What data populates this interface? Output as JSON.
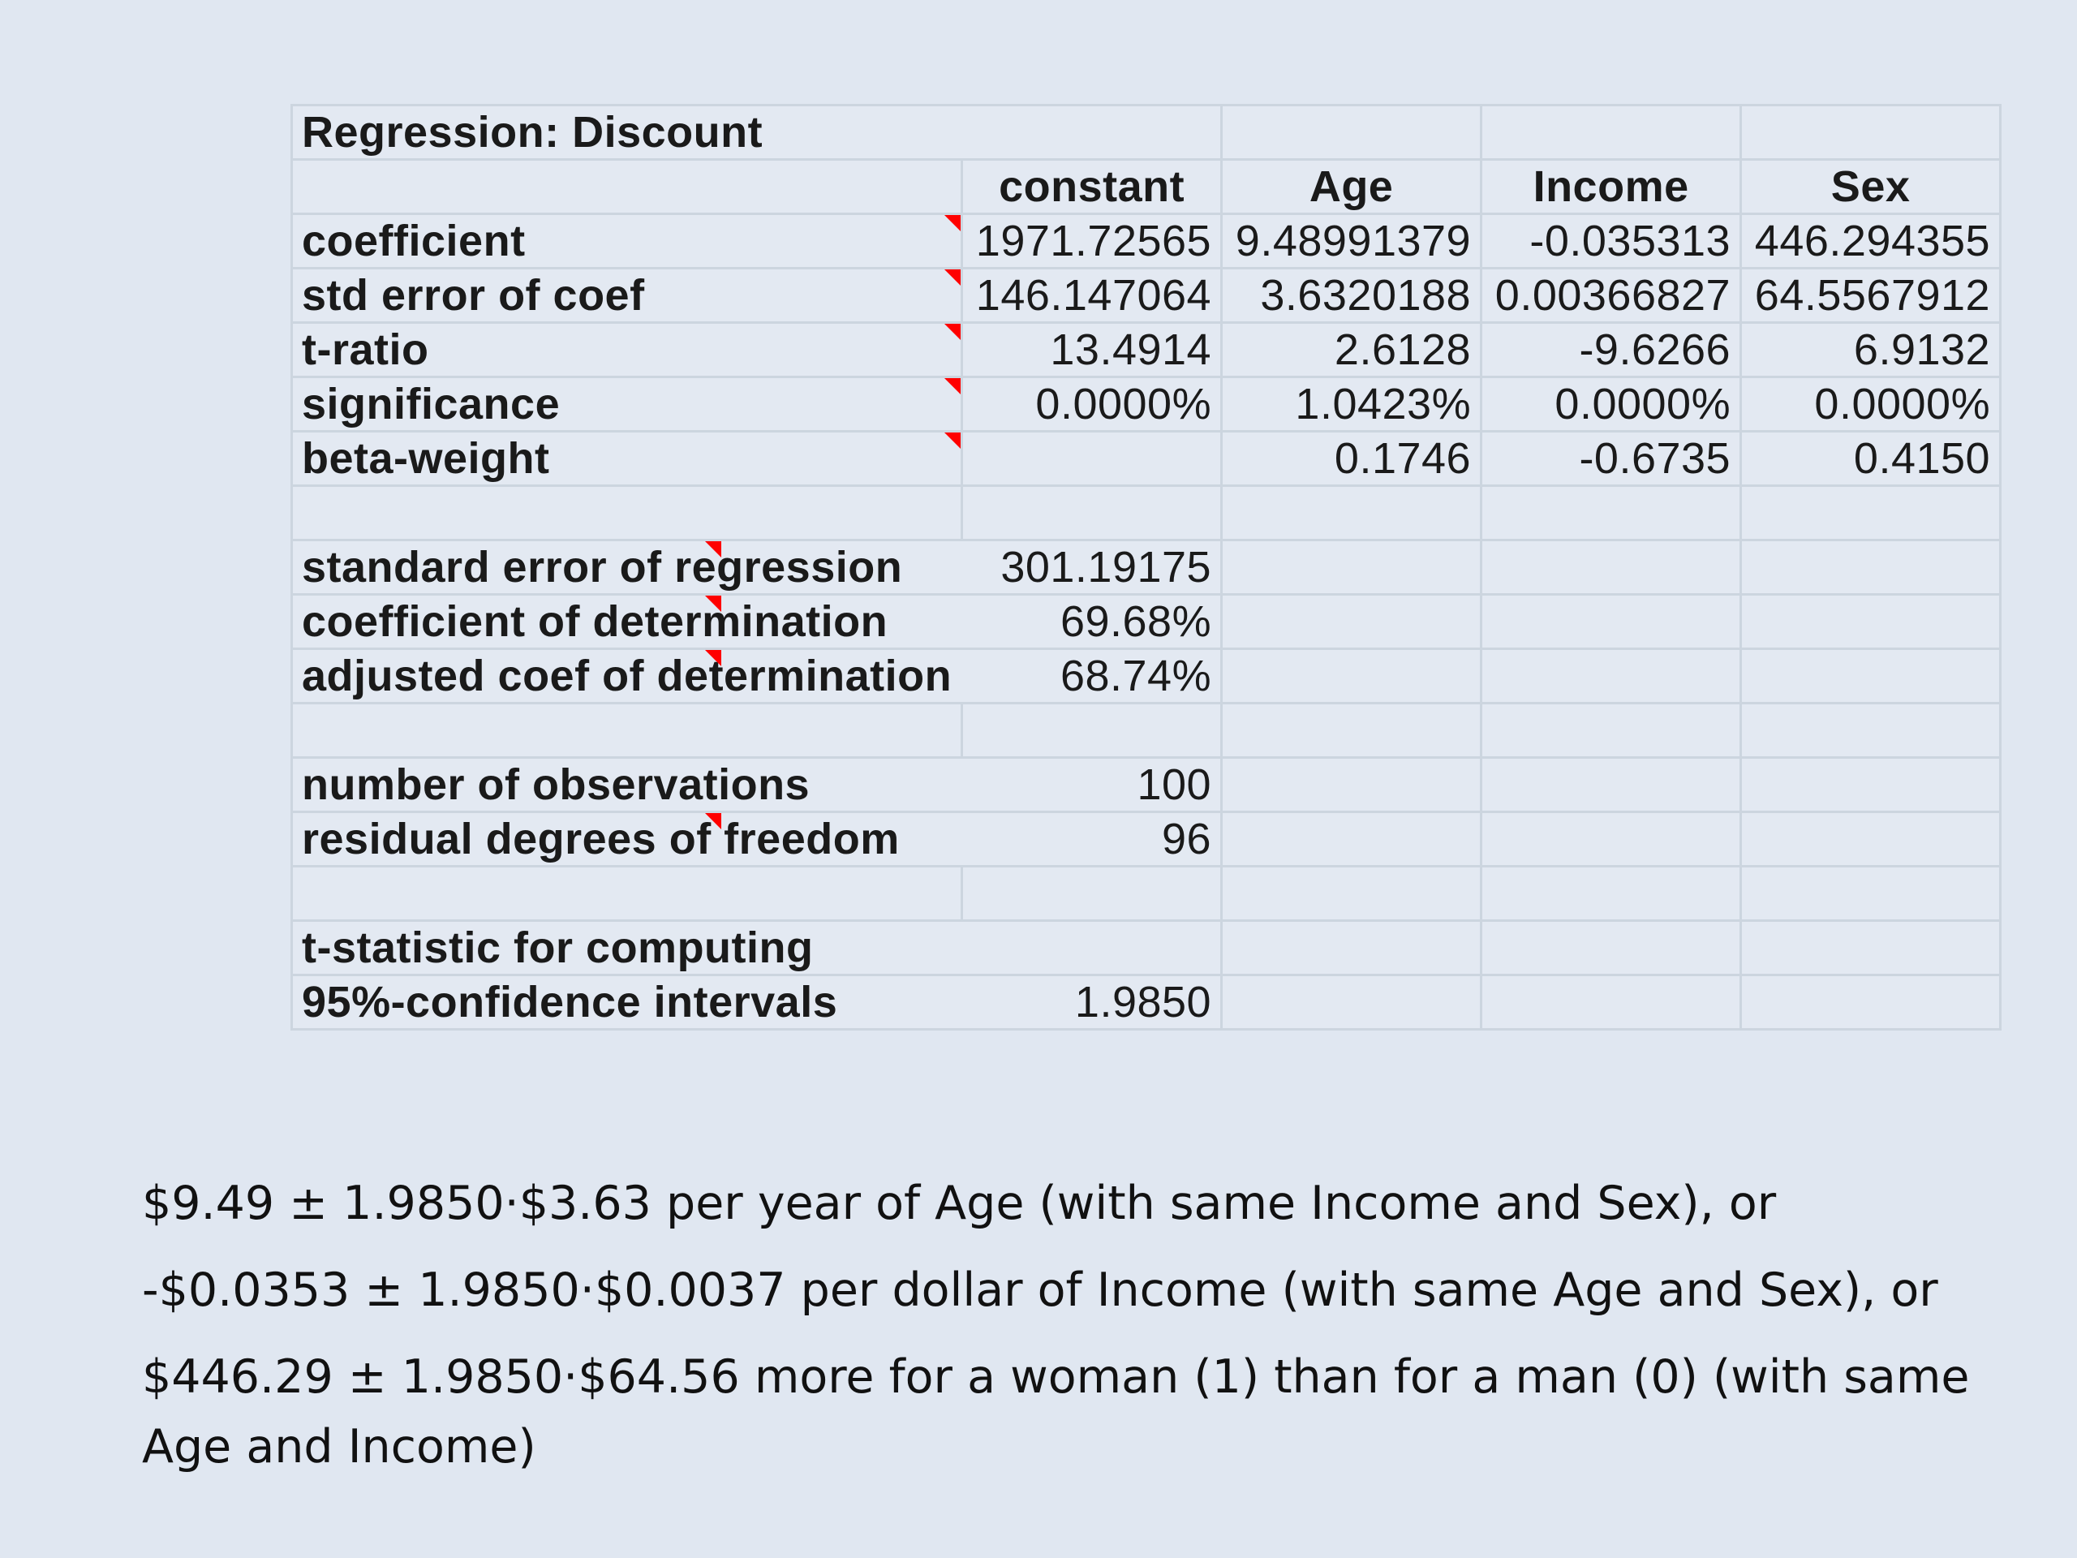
{
  "table": {
    "title": "Regression: Discount",
    "columns": [
      "constant",
      "Age",
      "Income",
      "Sex"
    ],
    "rows": [
      {
        "label": "coefficient",
        "values": [
          "1971.72565",
          "9.48991379",
          "-0.035313",
          "446.294355"
        ]
      },
      {
        "label": "std error of coef",
        "values": [
          "146.147064",
          "3.6320188",
          "0.00366827",
          "64.5567912"
        ]
      },
      {
        "label": "t-ratio",
        "values": [
          "13.4914",
          "2.6128",
          "-9.6266",
          "6.9132"
        ]
      },
      {
        "label": "significance",
        "values": [
          "0.0000%",
          "1.0423%",
          "0.0000%",
          "0.0000%"
        ]
      },
      {
        "label": "beta-weight",
        "values": [
          "",
          "0.1746",
          "-0.6735",
          "0.4150"
        ]
      }
    ],
    "summary": [
      {
        "label": "standard error of regression",
        "value": "301.19175"
      },
      {
        "label": "coefficient of determination",
        "value": "69.68%"
      },
      {
        "label": "adjusted coef of determination",
        "value": "68.74%"
      }
    ],
    "observations": [
      {
        "label": "number of observations",
        "value": "100"
      },
      {
        "label": "residual degrees of freedom",
        "value": "96"
      }
    ],
    "tstat": {
      "label_line1": "t-statistic for computing",
      "label_line2": "95%-confidence intervals",
      "value": "1.9850"
    },
    "marker_color": "#ff0000"
  },
  "notes": [
    "$9.49 ± 1.9850·$3.63 per year of Age (with same Income and Sex), or",
    "-$0.0353 ± 1.9850·$0.0037 per dollar of Income (with same Age and Sex), or",
    "$446.29 ± 1.9850·$64.56 more for a woman (1) than for a man (0) (with same Age and Income)"
  ]
}
